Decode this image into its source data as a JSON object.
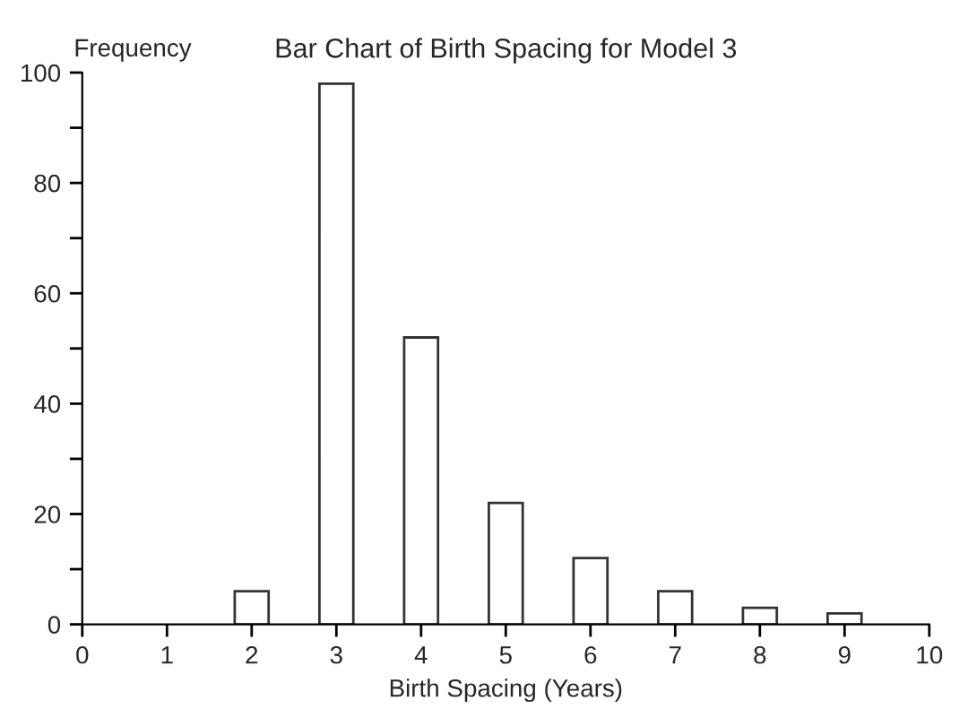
{
  "chart_data": {
    "type": "bar",
    "title": "Bar Chart of Birth Spacing for Model 3",
    "xlabel": "Birth Spacing (Years)",
    "ylabel": "Frequency",
    "x": [
      2,
      3,
      4,
      5,
      6,
      7,
      8,
      9
    ],
    "values": [
      6,
      98,
      52,
      22,
      12,
      6,
      3,
      2
    ],
    "color": "#ffffff",
    "xlim": [
      0,
      10
    ],
    "xticks": [
      0,
      1,
      2,
      3,
      4,
      5,
      6,
      7,
      8,
      9,
      10
    ],
    "ylim": [
      0,
      100
    ],
    "yticks": [
      0,
      {
        "value": 10,
        "label": null
      },
      20,
      {
        "value": 30,
        "label": null
      },
      40,
      {
        "value": 50,
        "label": null
      },
      60,
      {
        "value": 70,
        "label": null
      },
      80,
      {
        "value": 90,
        "label": null
      },
      100
    ],
    "grid": false,
    "legend": false
  }
}
